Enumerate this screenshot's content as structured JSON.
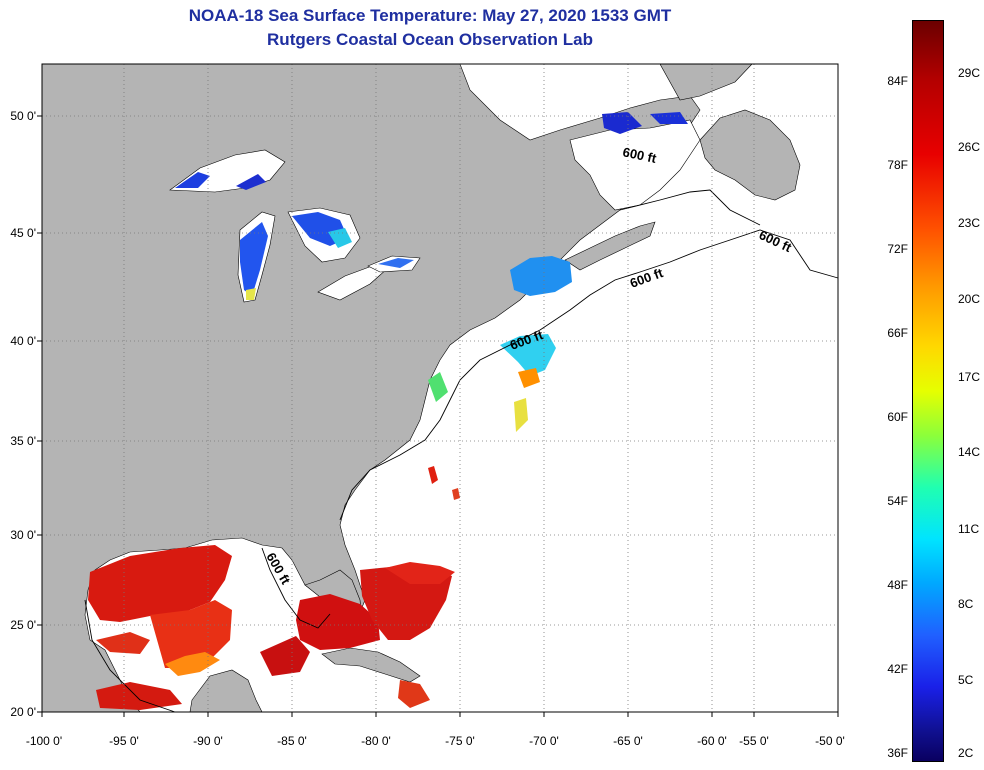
{
  "title": {
    "line1": "NOAA-18 Sea Surface Temperature:  May 27, 2020 1533 GMT",
    "line2": "Rutgers Coastal Ocean Observation Lab"
  },
  "map": {
    "lat_labels": [
      "50 0'",
      "45 0'",
      "40 0'",
      "35 0'",
      "30 0'",
      "25 0'",
      "20 0'"
    ],
    "lon_labels": [
      "-100 0'",
      "-95 0'",
      "-90 0'",
      "-85 0'",
      "-80 0'",
      "-75 0'",
      "-70 0'",
      "-65 0'",
      "-60 0'",
      "-55 0'",
      "-50 0'"
    ],
    "isobath_labels": [
      "600 ft",
      "600 ft",
      "600 ft",
      "600 ft",
      "600 ft"
    ],
    "colors": {
      "land": "#b4b4b4",
      "ocean_nodata": "#ffffff",
      "grid": "#888888"
    }
  },
  "colorbar": {
    "fahrenheit_labels": [
      "84F",
      "78F",
      "72F",
      "66F",
      "60F",
      "54F",
      "48F",
      "42F",
      "36F"
    ],
    "celsius_labels": [
      "29C",
      "26C",
      "23C",
      "20C",
      "17C",
      "14C",
      "11C",
      "8C",
      "5C",
      "2C"
    ]
  }
}
